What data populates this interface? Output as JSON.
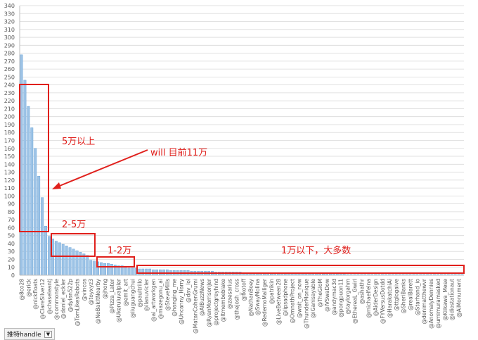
{
  "chart_data": {
    "type": "bar",
    "categories": [
      "@8co28",
      null,
      "@erick",
      null,
      "@nickfloats",
      null,
      "@ClareSilver12",
      null,
      "@chaseleantj",
      null,
      "@commonstyle",
      null,
      "@daniel_eckler",
      null,
      "@dylan522p",
      null,
      "@TomLikesRobots",
      null,
      "@vincos",
      null,
      "@toyxyz3",
      null,
      "@NoBakItNearby",
      null,
      "@jhong",
      null,
      "@Pizza_Later",
      null,
      "@Ukeruluvalpler",
      null,
      "@emit_art",
      null,
      "@liuguangchui",
      null,
      "@paultrillo",
      null,
      "@ilanuvicler",
      null,
      "@ai_artworkgen",
      null,
      "@mazegonu_ai",
      null,
      "@SteveMills",
      null,
      "@hanging_me",
      null,
      "@Uncanny_Harry",
      null,
      "@dav_lol",
      null,
      "@MatanCohenGrumi",
      null,
      "@AIBuzzNews",
      null,
      "@RyanMorrisonJer",
      null,
      "@projectgreyhind",
      null,
      "@ltmembeblake",
      null,
      "@zaesarius",
      null,
      "@thejosh_cross",
      null,
      "@fkotoff",
      null,
      "@NathanBoey",
      null,
      "@SwayMolina",
      null,
      "@RedemoMalliger",
      null,
      "@patrikin",
      null,
      "@LiveBetween28",
      null,
      "@lipsadphone",
      null,
      "@OmnathProject",
      null,
      "@wait_on_now",
      null,
      "@ThunderMonique",
      null,
      "@iGanisayable",
      null,
      "@TheGloM",
      null,
      "@IVSwaDow",
      null,
      "@andymac3d",
      null,
      "@pongpuon11",
      null,
      "@taylorgahm",
      null,
      "@EthereaL_Gwirl",
      null,
      "@ashathr",
      null,
      "@michaelfelna",
      null,
      "@AiderDesign",
      null,
      "@FYVersusDotdd",
      null,
      "@HarakatchiAi",
      null,
      "@ttglogaive",
      null,
      "@SheriBanks",
      null,
      "@realBarett",
      null,
      "@Starhand_io",
      null,
      "@denimatthewvr",
      null,
      "@AnomalyDennies",
      null,
      "@umimuramasked",
      null,
      "@Kiikawa_Mese",
      null,
      "@idiostationaut",
      null,
      "@AiMonument",
      null
    ],
    "values": [
      278,
      246,
      213,
      186,
      160,
      125,
      98,
      62,
      49,
      46,
      43,
      41,
      39,
      37,
      35,
      33,
      31,
      29,
      27,
      25,
      19,
      18,
      17,
      16,
      15,
      15,
      14,
      13,
      12,
      12,
      11,
      9,
      9,
      9,
      8,
      8,
      8,
      8,
      7,
      7,
      7,
      7,
      7,
      6,
      6,
      6,
      6,
      6,
      6,
      5,
      5,
      5,
      5,
      5,
      5,
      5,
      4,
      4,
      4,
      4,
      4,
      4,
      4,
      4,
      3,
      3,
      3,
      3,
      3,
      3,
      3,
      3,
      3,
      3,
      2,
      2,
      2,
      2,
      2,
      2,
      2,
      2,
      2,
      2,
      2,
      2,
      2,
      2,
      2,
      2,
      2,
      2,
      2,
      2,
      1,
      1,
      1,
      1,
      1,
      1,
      1,
      1,
      1,
      1,
      1,
      1,
      1,
      1,
      1,
      1,
      1,
      1,
      1,
      1,
      1,
      1,
      1,
      1,
      1,
      1,
      1,
      1,
      1,
      1,
      1,
      1,
      1,
      1
    ],
    "color": "#9dc3e6",
    "ylim": [
      0,
      340
    ],
    "yticks": [
      0,
      10,
      20,
      30,
      40,
      50,
      60,
      70,
      80,
      90,
      100,
      110,
      120,
      130,
      140,
      150,
      160,
      170,
      180,
      190,
      200,
      210,
      220,
      230,
      240,
      250,
      260,
      270,
      280,
      290,
      300,
      310,
      320,
      330,
      340
    ],
    "grid": true,
    "annotations": [
      {
        "text": "5万以上"
      },
      {
        "text": "will 目前11万"
      },
      {
        "text": "2-5万"
      },
      {
        "text": "1-2万"
      },
      {
        "text": "1万以下，大多数"
      }
    ],
    "filter_button": "推特handle"
  }
}
